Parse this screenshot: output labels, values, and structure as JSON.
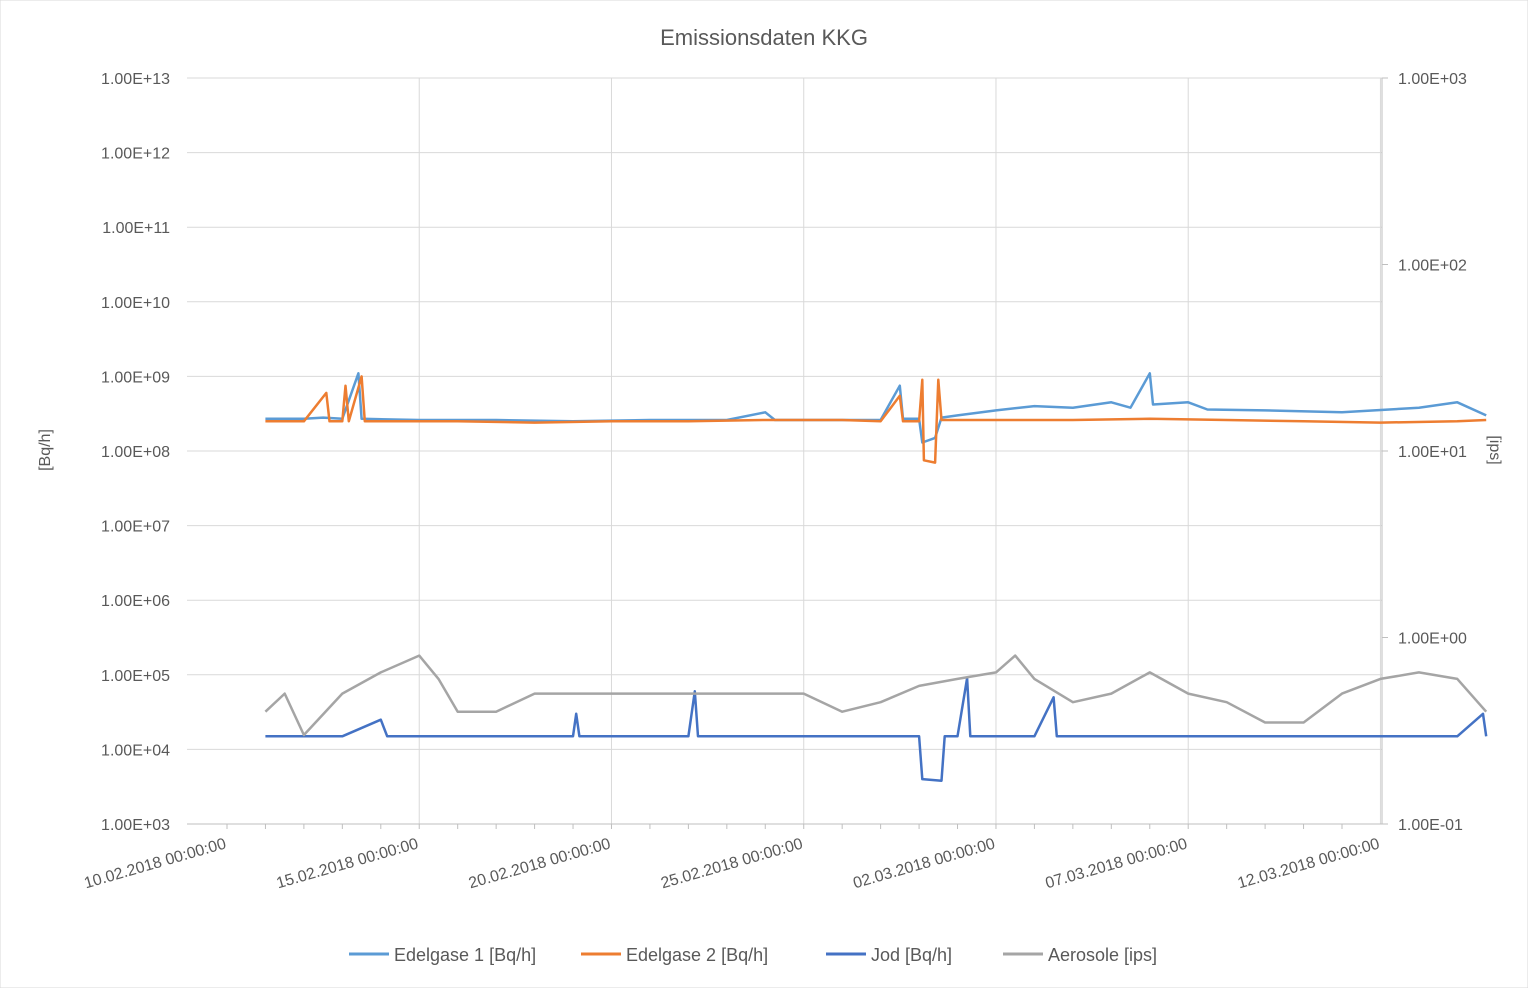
{
  "chart_data": {
    "type": "line",
    "title": "Emissionsdaten KKG",
    "y_left": {
      "label": "[Bq/h]",
      "scale": "log",
      "range": [
        1000,
        10000000000000
      ],
      "tick_labels": [
        "1.00E+03",
        "1.00E+04",
        "1.00E+05",
        "1.00E+06",
        "1.00E+07",
        "1.00E+08",
        "1.00E+09",
        "1.00E+10",
        "1.00E+11",
        "1.00E+12",
        "1.00E+13"
      ]
    },
    "y_right": {
      "label": "[ips]",
      "scale": "log",
      "range": [
        0.1,
        1000
      ],
      "tick_labels": [
        "1.00E-01",
        "1.00E+00",
        "1.00E+01",
        "1.00E+02",
        "1.00E+03"
      ]
    },
    "x": {
      "range": [
        "2018-02-10",
        "2018-03-15"
      ],
      "tick_labels": [
        "10.02.2018 00:00:00",
        "15.02.2018 00:00:00",
        "20.02.2018 00:00:00",
        "25.02.2018 00:00:00",
        "02.03.2018 00:00:00",
        "07.03.2018 00:00:00",
        "12.03.2018 00:00:00"
      ],
      "tick_dates": [
        "2018-02-10",
        "2018-02-15",
        "2018-02-20",
        "2018-02-25",
        "2018-03-02",
        "2018-03-07",
        "2018-03-12"
      ]
    },
    "grid": true,
    "legend_position": "bottom",
    "series": [
      {
        "name": "Edelgase 1 [Bq/h]",
        "axis": "left",
        "color": "#5B9BD5",
        "points": [
          [
            "2018-02-11",
            270000000.0
          ],
          [
            "2018-02-12",
            270000000.0
          ],
          [
            "2018-02-12T12:00",
            280000000.0
          ],
          [
            "2018-02-13",
            270000000.0
          ],
          [
            "2018-02-13T10:00",
            1100000000.0
          ],
          [
            "2018-02-13T12:00",
            270000000.0
          ],
          [
            "2018-02-15",
            260000000.0
          ],
          [
            "2018-02-17",
            260000000.0
          ],
          [
            "2018-02-19",
            250000000.0
          ],
          [
            "2018-02-21",
            260000000.0
          ],
          [
            "2018-02-23",
            260000000.0
          ],
          [
            "2018-02-24",
            330000000.0
          ],
          [
            "2018-02-24T06:00",
            260000000.0
          ],
          [
            "2018-02-26",
            260000000.0
          ],
          [
            "2018-02-27",
            260000000.0
          ],
          [
            "2018-02-27T12:00",
            750000000.0
          ],
          [
            "2018-02-27T14:00",
            270000000.0
          ],
          [
            "2018-02-28",
            270000000.0
          ],
          [
            "2018-02-28T02:00",
            130000000.0
          ],
          [
            "2018-02-28T10:00",
            150000000.0
          ],
          [
            "2018-02-28T14:00",
            280000000.0
          ],
          [
            "2018-03-01",
            300000000.0
          ],
          [
            "2018-03-02",
            350000000.0
          ],
          [
            "2018-03-03",
            400000000.0
          ],
          [
            "2018-03-04",
            380000000.0
          ],
          [
            "2018-03-05",
            450000000.0
          ],
          [
            "2018-03-05T12:00",
            380000000.0
          ],
          [
            "2018-03-06",
            1100000000.0
          ],
          [
            "2018-03-06T02:00",
            420000000.0
          ],
          [
            "2018-03-07",
            450000000.0
          ],
          [
            "2018-03-07T12:00",
            360000000.0
          ],
          [
            "2018-03-09",
            350000000.0
          ],
          [
            "2018-03-11",
            330000000.0
          ],
          [
            "2018-03-13",
            380000000.0
          ],
          [
            "2018-03-14",
            450000000.0
          ],
          [
            "2018-03-14T18:00",
            300000000.0
          ]
        ]
      },
      {
        "name": "Edelgase 2 [Bq/h]",
        "axis": "left",
        "color": "#ED7D31",
        "points": [
          [
            "2018-02-11",
            250000000.0
          ],
          [
            "2018-02-12",
            250000000.0
          ],
          [
            "2018-02-12T14:00",
            600000000.0
          ],
          [
            "2018-02-12T16:00",
            250000000.0
          ],
          [
            "2018-02-13",
            250000000.0
          ],
          [
            "2018-02-13T02:00",
            750000000.0
          ],
          [
            "2018-02-13T04:00",
            250000000.0
          ],
          [
            "2018-02-13T12:00",
            1000000000.0
          ],
          [
            "2018-02-13T14:00",
            250000000.0
          ],
          [
            "2018-02-16",
            250000000.0
          ],
          [
            "2018-02-18",
            240000000.0
          ],
          [
            "2018-02-20",
            250000000.0
          ],
          [
            "2018-02-22",
            250000000.0
          ],
          [
            "2018-02-24",
            260000000.0
          ],
          [
            "2018-02-26",
            260000000.0
          ],
          [
            "2018-02-27",
            250000000.0
          ],
          [
            "2018-02-27T12:00",
            550000000.0
          ],
          [
            "2018-02-27T14:00",
            250000000.0
          ],
          [
            "2018-02-28",
            250000000.0
          ],
          [
            "2018-02-28T02:00",
            900000000.0
          ],
          [
            "2018-02-28T03:00",
            75000000.0
          ],
          [
            "2018-02-28T10:00",
            70000000.0
          ],
          [
            "2018-02-28T12:00",
            900000000.0
          ],
          [
            "2018-02-28T14:00",
            260000000.0
          ],
          [
            "2018-03-02",
            260000000.0
          ],
          [
            "2018-03-04",
            260000000.0
          ],
          [
            "2018-03-06",
            270000000.0
          ],
          [
            "2018-03-08",
            260000000.0
          ],
          [
            "2018-03-10",
            250000000.0
          ],
          [
            "2018-03-12",
            240000000.0
          ],
          [
            "2018-03-14",
            250000000.0
          ],
          [
            "2018-03-14T18:00",
            260000000.0
          ]
        ]
      },
      {
        "name": "Jod [Bq/h]",
        "axis": "left",
        "color": "#4472C4",
        "points": [
          [
            "2018-02-11",
            15000.0
          ],
          [
            "2018-02-13",
            15000.0
          ],
          [
            "2018-02-14",
            25000.0
          ],
          [
            "2018-02-14T04:00",
            15000.0
          ],
          [
            "2018-02-17",
            15000.0
          ],
          [
            "2018-02-19",
            15000.0
          ],
          [
            "2018-02-19T02:00",
            30000.0
          ],
          [
            "2018-02-19T04:00",
            15000.0
          ],
          [
            "2018-02-22",
            15000.0
          ],
          [
            "2018-02-22T04:00",
            60000.0
          ],
          [
            "2018-02-22T06:00",
            15000.0
          ],
          [
            "2018-02-25",
            15000.0
          ],
          [
            "2018-02-27",
            15000.0
          ],
          [
            "2018-02-28",
            15000.0
          ],
          [
            "2018-02-28T02:00",
            4000.0
          ],
          [
            "2018-02-28T14:00",
            3800.0
          ],
          [
            "2018-02-28T16:00",
            15000.0
          ],
          [
            "2018-03-01",
            15000.0
          ],
          [
            "2018-03-01T06:00",
            90000.0
          ],
          [
            "2018-03-01T08:00",
            15000.0
          ],
          [
            "2018-03-03",
            15000.0
          ],
          [
            "2018-03-03T12:00",
            50000.0
          ],
          [
            "2018-03-03T14:00",
            15000.0
          ],
          [
            "2018-03-07",
            15000.0
          ],
          [
            "2018-03-10",
            15000.0
          ],
          [
            "2018-03-14",
            15000.0
          ],
          [
            "2018-03-14T16:00",
            30000.0
          ],
          [
            "2018-03-14T18:00",
            15000.0
          ]
        ]
      },
      {
        "name": "Aerosole [ips]",
        "axis": "right",
        "color": "#A5A5A5",
        "points": [
          [
            "2018-02-11",
            0.4
          ],
          [
            "2018-02-11T12:00",
            0.5
          ],
          [
            "2018-02-12",
            0.3
          ],
          [
            "2018-02-13",
            0.5
          ],
          [
            "2018-02-14",
            0.65
          ],
          [
            "2018-02-15",
            0.8
          ],
          [
            "2018-02-15T12:00",
            0.6
          ],
          [
            "2018-02-16",
            0.4
          ],
          [
            "2018-02-17",
            0.4
          ],
          [
            "2018-02-18",
            0.5
          ],
          [
            "2018-02-20",
            0.5
          ],
          [
            "2018-02-22",
            0.5
          ],
          [
            "2018-02-24",
            0.5
          ],
          [
            "2018-02-25",
            0.5
          ],
          [
            "2018-02-26",
            0.4
          ],
          [
            "2018-02-27",
            0.45
          ],
          [
            "2018-02-28",
            0.55
          ],
          [
            "2018-03-01",
            0.6
          ],
          [
            "2018-03-02",
            0.65
          ],
          [
            "2018-03-02T12:00",
            0.8
          ],
          [
            "2018-03-03",
            0.6
          ],
          [
            "2018-03-04",
            0.45
          ],
          [
            "2018-03-05",
            0.5
          ],
          [
            "2018-03-06",
            0.65
          ],
          [
            "2018-03-07",
            0.5
          ],
          [
            "2018-03-08",
            0.45
          ],
          [
            "2018-03-09",
            0.35
          ],
          [
            "2018-03-10",
            0.35
          ],
          [
            "2018-03-11",
            0.5
          ],
          [
            "2018-03-12",
            0.6
          ],
          [
            "2018-03-13",
            0.65
          ],
          [
            "2018-03-14",
            0.6
          ],
          [
            "2018-03-14T18:00",
            0.4
          ]
        ]
      }
    ]
  }
}
